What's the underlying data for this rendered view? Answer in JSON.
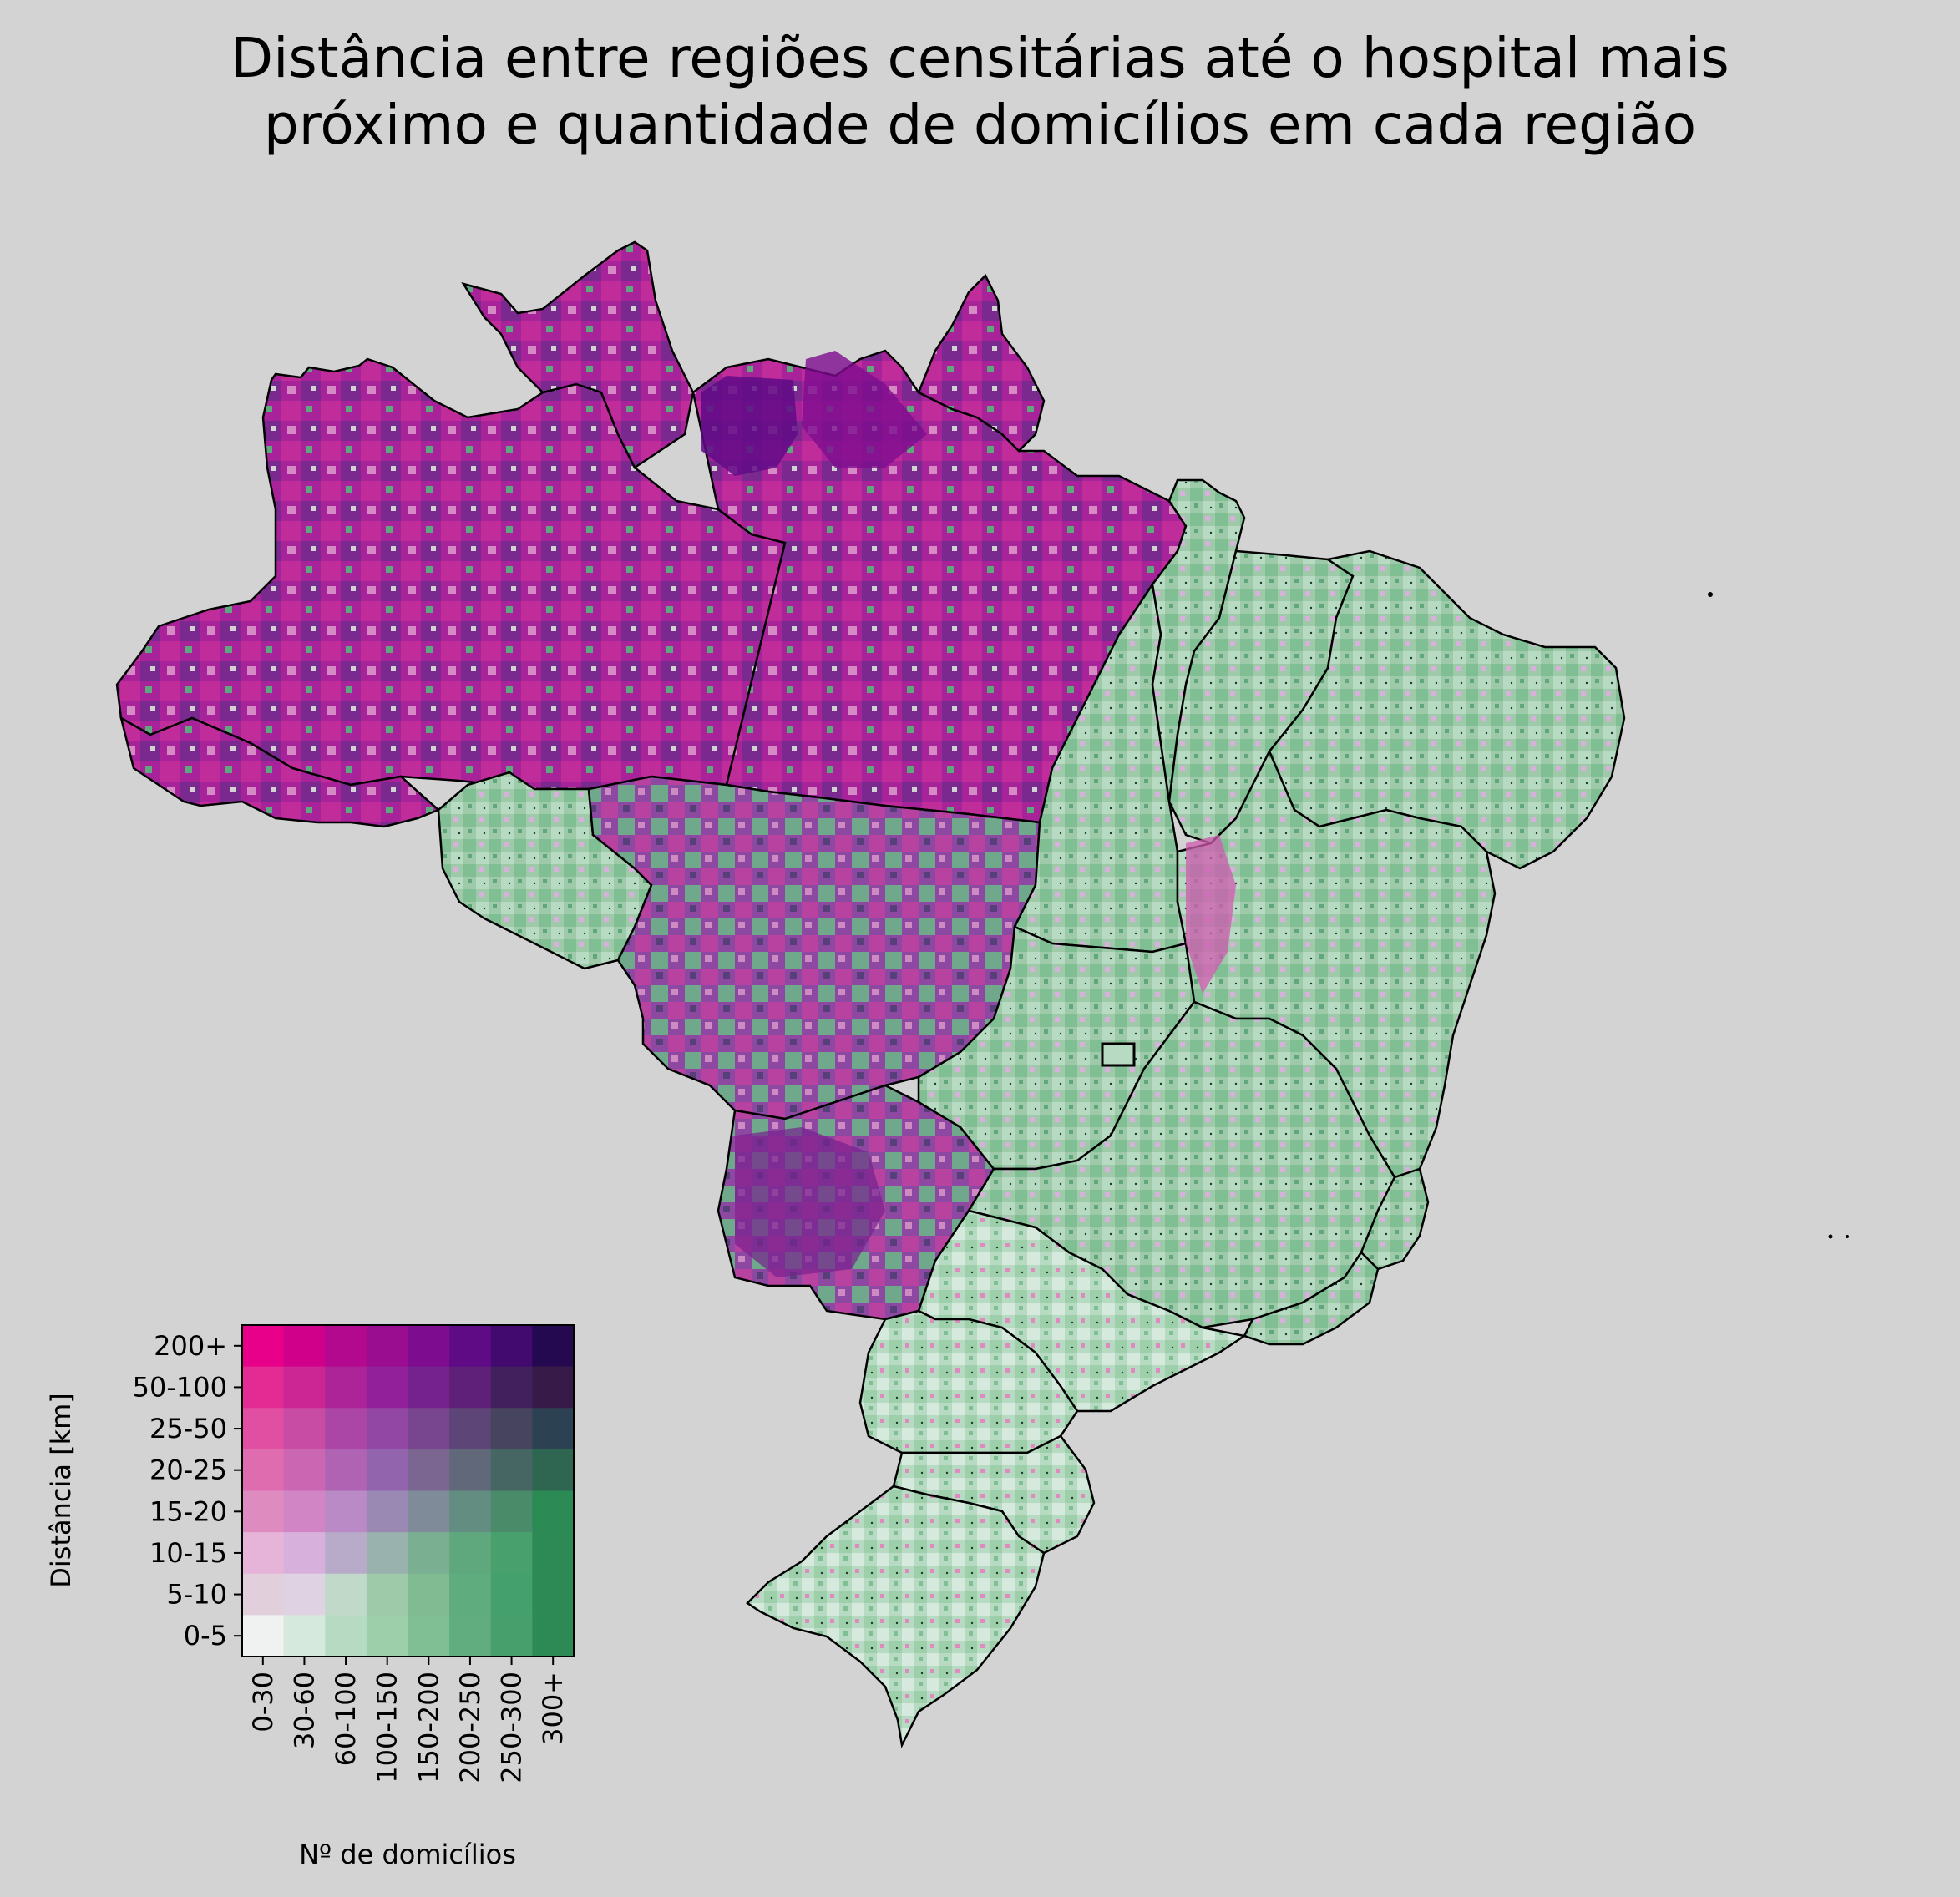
{
  "title": {
    "line1": "Distância entre regiões censitárias até o hospital mais",
    "line2": "próximo e quantidade de domicílios em cada região"
  },
  "map": {
    "background_color": "#d3d3d3",
    "boundary_color": "#000000",
    "no_data_color": "#d3d3d3"
  },
  "legend": {
    "y_label": "Distância [km]",
    "x_label": "Nº de domicílios",
    "distance_classes": [
      "0-5",
      "5-10",
      "10-15",
      "15-20",
      "20-25",
      "25-50",
      "50-100",
      "200+"
    ],
    "household_classes": [
      "0-30",
      "30-60",
      "60-100",
      "100-150",
      "150-200",
      "200-250",
      "250-300",
      "300+"
    ],
    "colors_top_to_bottom": [
      [
        "#e8008a",
        "#d0008a",
        "#b3098f",
        "#9a0d90",
        "#7d0c8e",
        "#600b86",
        "#42096e",
        "#250950"
      ],
      [
        "#e32b93",
        "#cc2594",
        "#ad2398",
        "#91209a",
        "#76228e",
        "#5e2079",
        "#42205e",
        "#381a48"
      ],
      [
        "#e04fa1",
        "#c84ca3",
        "#ab46a6",
        "#9147a3",
        "#78468e",
        "#5d4577",
        "#47445f",
        "#2c4252"
      ],
      [
        "#df6cae",
        "#cb66b3",
        "#b062b3",
        "#9364ae",
        "#7a6690",
        "#60687a",
        "#456663",
        "#2e6651"
      ],
      [
        "#de8bc0",
        "#d185c5",
        "#b98ac5",
        "#9a89b3",
        "#808b9a",
        "#628d80",
        "#4a8b6a",
        "#2c8a55"
      ],
      [
        "#e7b4d9",
        "#d7b1dc",
        "#b8aac9",
        "#9ab2ae",
        "#7baf92",
        "#5fa87d",
        "#48a06c",
        "#2e8a54"
      ],
      [
        "#e2cfdc",
        "#dfd2e2",
        "#c1d9c9",
        "#9fcaaa",
        "#80bb92",
        "#5fad7f",
        "#44a06c",
        "#2e8a54"
      ],
      [
        "#eff2f0",
        "#d5e9dc",
        "#b6dbc2",
        "#9ccfaa",
        "#7fbf93",
        "#62ad7f",
        "#47a06c",
        "#2e8a54"
      ]
    ]
  }
}
